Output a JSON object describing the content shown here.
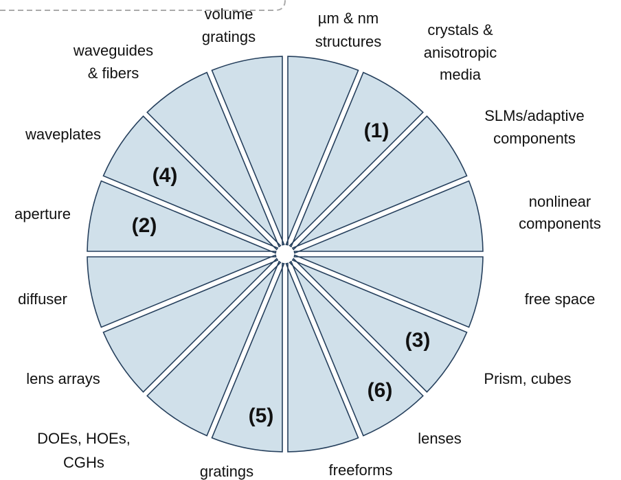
{
  "segments": [
    {
      "label": [
        "µm & nm",
        "structures"
      ]
    },
    {
      "label": [
        "crystals &",
        "anisotropic",
        "media"
      ],
      "marker": "(1)"
    },
    {
      "label": [
        "SLMs/adaptive",
        "components"
      ]
    },
    {
      "label": [
        "nonlinear",
        "components"
      ]
    },
    {
      "label": [
        "free space"
      ]
    },
    {
      "label": [
        "Prism, cubes"
      ],
      "marker": "(3)"
    },
    {
      "label": [
        "lenses"
      ],
      "marker": "(6)"
    },
    {
      "label": [
        "freeforms"
      ]
    },
    {
      "label": [
        "gratings"
      ],
      "marker": "(5)"
    },
    {
      "label": [
        "DOEs, HOEs,",
        "CGHs"
      ]
    },
    {
      "label": [
        "lens arrays"
      ]
    },
    {
      "label": [
        "diffuser"
      ]
    },
    {
      "label": [
        "aperture"
      ],
      "marker": "(2)"
    },
    {
      "label": [
        "waveplates"
      ],
      "marker": "(4)"
    },
    {
      "label": [
        "waveguides",
        "& fibers"
      ]
    },
    {
      "label": [
        "volume",
        "gratings"
      ]
    }
  ]
}
